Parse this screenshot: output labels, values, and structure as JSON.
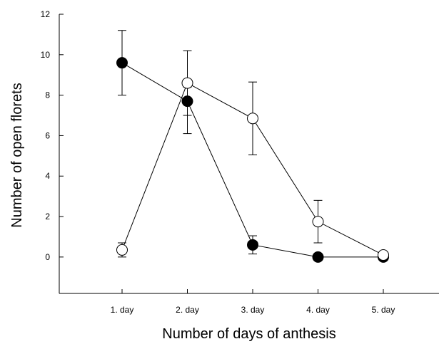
{
  "chart_data": {
    "type": "line",
    "title": "",
    "xlabel": "Number of days of anthesis",
    "ylabel": "Number of open florets",
    "categories": [
      "1. day",
      "2. day",
      "3. day",
      "4. day",
      "5. day"
    ],
    "y_ticks": [
      0,
      2,
      4,
      6,
      8,
      10,
      12
    ],
    "ylim": [
      -1.8,
      12
    ],
    "grid": false,
    "legend": "none",
    "series": [
      {
        "marker": "filled-circle",
        "values": [
          9.6,
          7.7,
          0.6,
          0.0,
          0.0
        ],
        "error_lower": [
          1.6,
          0.7,
          0.45,
          0.0,
          0.0
        ],
        "error_upper": [
          1.6,
          0.7,
          0.45,
          0.0,
          0.0
        ]
      },
      {
        "marker": "open-circle",
        "values": [
          0.35,
          8.6,
          6.85,
          1.75,
          0.1
        ],
        "error_lower": [
          0.35,
          2.5,
          1.8,
          1.05,
          0.0
        ],
        "error_upper": [
          0.35,
          1.6,
          1.8,
          1.05,
          0.0
        ]
      }
    ]
  }
}
